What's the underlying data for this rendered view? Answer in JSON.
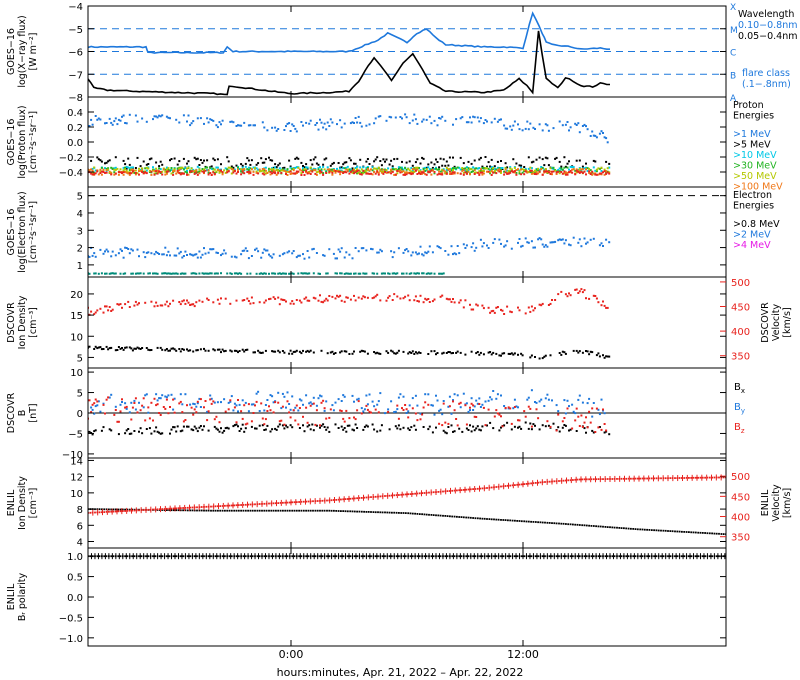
{
  "figure": {
    "xlabel": "hours:minutes, Apr. 21, 2022 – Apr. 22, 2022",
    "x_range_hours": [
      -10.5,
      22.5
    ],
    "x_ticks": [
      {
        "h": 0,
        "label": "0:00"
      },
      {
        "h": 12,
        "label": "12:00"
      }
    ],
    "data_end_hour": 16.5
  },
  "colors": {
    "black": "#000000",
    "blue": "#1e78dc",
    "red": "#e8231e",
    "cyan": "#00c8e6",
    "green": "#22b422",
    "yellow_green": "#b4c800",
    "orange": "#f07818",
    "magenta": "#e619e6",
    "teal": "#008c7a"
  },
  "chart_data": [
    {
      "id": "xray",
      "type": "line",
      "ylabel": [
        "GOES−16",
        "log(X−ray flux)",
        "[W m⁻²]"
      ],
      "y_range": [
        -8,
        -4
      ],
      "y_ticks": [
        -4,
        -5,
        -6,
        -7,
        -8
      ],
      "tick_labels": [
        "−4",
        "−5",
        "−6",
        "−7",
        "−8"
      ],
      "flare_levels": [
        {
          "y": -4,
          "label": "X"
        },
        {
          "y": -5,
          "label": "M"
        },
        {
          "y": -6,
          "label": "C"
        },
        {
          "y": -7,
          "label": "B"
        },
        {
          "y": -8,
          "label": "A"
        }
      ],
      "legend": [
        {
          "text": "Wavelength",
          "color": "black"
        },
        {
          "text": "0.10−0.8nm",
          "color": "blue"
        },
        {
          "text": "0.05−0.4nm",
          "color": "black"
        },
        {
          "text": "flare class",
          "color": "blue"
        },
        {
          "text": "(.1−.8nm)",
          "color": "blue"
        }
      ],
      "series": [
        {
          "color": "blue",
          "style": "line",
          "x": [
            -10.5,
            -7.5,
            -7.4,
            -3.5,
            -3.3,
            -3,
            0,
            3,
            4.5,
            5,
            6,
            6.5,
            7,
            7.5,
            8,
            9,
            10,
            11,
            12,
            12.5,
            13,
            13.2,
            13.5,
            14,
            14.5,
            15,
            16,
            16.5
          ],
          "y": [
            -5.8,
            -5.8,
            -6.05,
            -6.05,
            -5.8,
            -6.0,
            -6.0,
            -6.0,
            -5.5,
            -5.2,
            -5.6,
            -5.2,
            -5.0,
            -5.4,
            -5.7,
            -5.75,
            -5.8,
            -5.8,
            -5.85,
            -4.3,
            -5.2,
            -5.6,
            -5.7,
            -5.75,
            -5.8,
            -5.9,
            -5.85,
            -5.9
          ]
        },
        {
          "color": "black",
          "style": "line",
          "x": [
            -10.5,
            -10.2,
            -9.5,
            -8,
            -6,
            -4,
            -3.3,
            -3.2,
            -1,
            0,
            2,
            3,
            3.5,
            4,
            4.3,
            4.8,
            5.2,
            5.8,
            6.3,
            6.8,
            7.2,
            8,
            10,
            11,
            11.8,
            12.2,
            12.5,
            12.8,
            13.2,
            13.8,
            14.2,
            14.6,
            15,
            15.6,
            16,
            16.5
          ],
          "y": [
            -7.2,
            -7.6,
            -7.7,
            -7.75,
            -7.8,
            -7.85,
            -7.9,
            -7.5,
            -7.75,
            -7.85,
            -7.8,
            -7.75,
            -7.3,
            -6.6,
            -6.3,
            -6.8,
            -7.3,
            -6.5,
            -6.1,
            -6.8,
            -7.4,
            -7.75,
            -7.8,
            -7.7,
            -7.2,
            -7.5,
            -7.8,
            -5.1,
            -7.2,
            -7.6,
            -7.15,
            -7.3,
            -7.5,
            -7.55,
            -7.4,
            -7.45
          ]
        }
      ]
    },
    {
      "id": "proton",
      "type": "scatter",
      "ylabel": [
        "GOES−16",
        "log(Proton flux)",
        "[cm⁻²s⁻¹sr⁻¹]"
      ],
      "y_range": [
        -0.6,
        0.6
      ],
      "y_ticks": [
        0.4,
        0.2,
        0.0,
        -0.2,
        -0.4
      ],
      "tick_labels": [
        "0.4",
        "0.2",
        "0.0",
        "−0.2",
        "−0.4"
      ],
      "legend": [
        {
          "text": "Proton",
          "color": "black"
        },
        {
          "text": "Energies",
          "color": "black"
        },
        {
          "text": ">1 MeV",
          "color": "blue"
        },
        {
          "text": ">5 MeV",
          "color": "black"
        },
        {
          "text": ">10 MeV",
          "color": "cyan"
        },
        {
          "text": ">30 MeV",
          "color": "green"
        },
        {
          "text": ">50 MeV",
          "color": "yellow_green"
        },
        {
          "text": ">100 MeV",
          "color": "orange"
        }
      ],
      "series": [
        {
          "name": ">1 MeV",
          "color": "blue",
          "mean_x": [
            -10.5,
            -6,
            -3,
            0,
            3,
            6,
            9,
            12,
            15,
            16.5
          ],
          "mean_y": [
            0.28,
            0.32,
            0.22,
            0.2,
            0.26,
            0.3,
            0.28,
            0.22,
            0.2,
            0.05
          ],
          "spread": 0.07
        },
        {
          "name": ">5 MeV",
          "color": "black",
          "mean_x": [
            -10.5,
            16.5
          ],
          "mean_y": [
            -0.28,
            -0.28
          ],
          "spread": 0.08
        },
        {
          "name": ">10 MeV",
          "color": "cyan",
          "mean_x": [
            -10.5,
            16.5
          ],
          "mean_y": [
            -0.36,
            -0.36
          ],
          "spread": 0.03
        },
        {
          "name": ">30 MeV",
          "color": "green",
          "mean_x": [
            -10.5,
            16.5
          ],
          "mean_y": [
            -0.38,
            -0.38
          ],
          "spread": 0.04
        },
        {
          "name": ">50 MeV",
          "color": "yellow_green",
          "mean_x": [
            -10.5,
            16.5
          ],
          "mean_y": [
            -0.38,
            -0.38
          ],
          "spread": 0.04
        },
        {
          "name": ">100 MeV",
          "color": "orange",
          "mean_x": [
            -10.5,
            16.5
          ],
          "mean_y": [
            -0.4,
            -0.4
          ],
          "spread": 0.04
        },
        {
          "color": "red",
          "mean_x": [
            -10.5,
            16.5
          ],
          "mean_y": [
            -0.41,
            -0.41
          ],
          "spread": 0.03
        }
      ]
    },
    {
      "id": "electron",
      "type": "scatter",
      "ylabel": [
        "GOES−16",
        "log(Electron flux)",
        "[cm⁻²s⁻¹sr⁻¹]"
      ],
      "y_range": [
        0.3,
        5.5
      ],
      "y_ticks": [
        5,
        4,
        3,
        2,
        1
      ],
      "tick_labels": [
        "5",
        "4",
        "3",
        "2",
        "1"
      ],
      "dashed_level": 5,
      "legend": [
        {
          "text": "Electron",
          "color": "black"
        },
        {
          "text": "Energies",
          "color": "black"
        },
        {
          "text": ">0.8 MeV",
          "color": "black"
        },
        {
          "text": ">2 MeV",
          "color": "blue"
        },
        {
          "text": ">4 MeV",
          "color": "magenta"
        }
      ],
      "series": [
        {
          "name": ">2 MeV",
          "color": "blue",
          "mean_x": [
            -10.5,
            -4,
            0,
            4,
            8,
            10,
            14,
            16.5
          ],
          "mean_y": [
            1.7,
            1.7,
            1.6,
            1.7,
            1.8,
            2.2,
            2.3,
            2.35
          ],
          "spread": 0.3
        },
        {
          "color": "teal",
          "mean_x": [
            -10.5,
            8
          ],
          "mean_y": [
            0.5,
            0.5
          ],
          "spread": 0.02
        }
      ]
    },
    {
      "id": "dscovr_plasma",
      "type": "scatter",
      "ylabel": [
        "DSCOVR",
        "Ion Density",
        "[cm⁻³]"
      ],
      "y_range": [
        2.5,
        24
      ],
      "y_ticks": [
        20,
        15,
        10,
        5
      ],
      "tick_labels": [
        "20",
        "15",
        "10",
        "5"
      ],
      "right_axis": {
        "label": [
          "DSCOVR",
          "Velocity",
          "[km/s]"
        ],
        "range": [
          325,
          510
        ],
        "ticks": [
          500,
          450,
          400,
          350
        ],
        "color": "red"
      },
      "series": [
        {
          "name": "Ion Density",
          "color": "black",
          "axis": "left",
          "mean_x": [
            -10.5,
            -6,
            0,
            6,
            10,
            12,
            13,
            14,
            15,
            16.5
          ],
          "mean_y": [
            7.2,
            6.8,
            6.2,
            6.2,
            6.0,
            5.5,
            5.0,
            6.0,
            6.5,
            5.0
          ],
          "spread": 0.4
        },
        {
          "name": "Velocity",
          "color": "red",
          "axis": "right",
          "mean_x": [
            -10.5,
            -8,
            -4,
            0,
            4,
            8,
            10,
            12,
            13,
            14,
            15,
            16.5
          ],
          "mean_y": [
            440,
            455,
            460,
            462,
            470,
            465,
            445,
            440,
            450,
            478,
            480,
            448
          ],
          "spread": 8
        }
      ]
    },
    {
      "id": "dscovr_mag",
      "type": "scatter",
      "ylabel": [
        "DSCOVR",
        "B",
        "[nT]"
      ],
      "y_range": [
        -11,
        11
      ],
      "y_ticks": [
        10,
        5,
        0,
        -5,
        -10
      ],
      "tick_labels": [
        "10",
        "5",
        "0",
        "−5",
        "−10"
      ],
      "zero_line": true,
      "legend": [
        {
          "text": "B",
          "sub": "x",
          "color": "black"
        },
        {
          "text": "B",
          "sub": "y",
          "color": "blue"
        },
        {
          "text": "B",
          "sub": "z",
          "color": "red"
        }
      ],
      "series": [
        {
          "name": "Bx",
          "color": "black",
          "mean_x": [
            -10.5,
            0,
            8,
            12,
            16.5
          ],
          "mean_y": [
            -4.5,
            -3.5,
            -4,
            -3,
            -4.5
          ],
          "spread": 1.0
        },
        {
          "name": "By",
          "color": "blue",
          "mean_x": [
            -10.5,
            0,
            8,
            12,
            16.5
          ],
          "mean_y": [
            2,
            3,
            2,
            3.5,
            1
          ],
          "spread": 2.5
        },
        {
          "name": "Bz",
          "color": "red",
          "mean_x": [
            -10.5,
            0,
            8,
            12,
            16.5
          ],
          "mean_y": [
            1,
            0,
            0,
            -1,
            -2
          ],
          "spread": 3.0
        }
      ]
    },
    {
      "id": "enlil_plasma",
      "type": "scatter",
      "ylabel": [
        "ENLIL",
        "Ion Density",
        "[cm⁻³]"
      ],
      "y_range": [
        3.2,
        14.3
      ],
      "y_ticks": [
        14,
        12,
        10,
        8,
        6,
        4
      ],
      "tick_labels": [
        "14",
        "12",
        "10",
        "8",
        "6",
        "4"
      ],
      "right_axis": {
        "label": [
          "ENLIL",
          "Velocity",
          "[km/s]"
        ],
        "range": [
          322,
          545
        ],
        "ticks": [
          500,
          450,
          400,
          350
        ],
        "color": "red"
      },
      "series": [
        {
          "name": "Ion Density",
          "color": "black",
          "axis": "left",
          "mean_x": [
            -10.5,
            -4,
            2,
            6,
            10,
            14,
            18,
            22.5
          ],
          "mean_y": [
            8.0,
            7.8,
            7.8,
            7.5,
            6.8,
            6.2,
            5.5,
            4.9
          ],
          "spread": 0
        },
        {
          "name": "Velocity",
          "color": "red",
          "axis": "right",
          "mean_x": [
            -10.5,
            -4,
            2,
            6,
            10,
            13,
            15,
            18,
            22.5
          ],
          "mean_y": [
            409,
            425,
            440,
            455,
            470,
            485,
            492,
            494,
            497
          ],
          "spread": 0
        }
      ]
    },
    {
      "id": "enlil_polarity",
      "type": "scatter",
      "ylabel": [
        "ENLIL",
        "Bᵣ polarity"
      ],
      "y_range": [
        -1.2,
        1.2
      ],
      "y_ticks": [
        1.0,
        0.5,
        0.0,
        -0.5,
        -1.0
      ],
      "tick_labels": [
        "1.0",
        "0.5",
        "0.0",
        "−0.5",
        "−1.0"
      ],
      "series": [
        {
          "name": "polarity",
          "color": "black",
          "mean_x": [
            -10.5,
            22.5
          ],
          "mean_y": [
            1.0,
            1.0
          ],
          "spread": 0
        }
      ]
    }
  ]
}
